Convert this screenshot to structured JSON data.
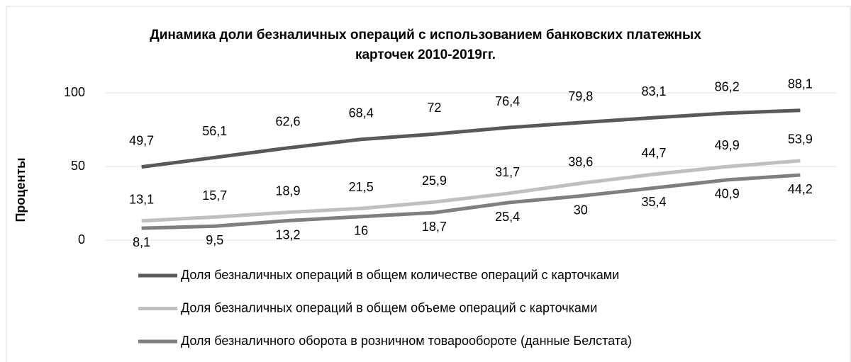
{
  "chart_data": {
    "type": "line",
    "title": "Динамика доли безналичных операций с использованием банковских платежных карточек 2010-2019гг.",
    "y_label": "Проценты",
    "categories": [
      null,
      null,
      null,
      null,
      null,
      null,
      null,
      null,
      null,
      null
    ],
    "ylim": [
      0,
      100
    ],
    "yticks": [
      0,
      50,
      100
    ],
    "grid": true,
    "series": [
      {
        "name": "Доля безналичных операций в общем количестве операций с карточками",
        "color": "#595959",
        "values": [
          49.7,
          56.1,
          62.6,
          68.4,
          72,
          76.4,
          79.8,
          83.1,
          86.2,
          88.1
        ],
        "value_labels": [
          "49,7",
          "56,1",
          "62,6",
          "68,4",
          "72",
          "76,4",
          "79,8",
          "83,1",
          "86,2",
          "88,1"
        ]
      },
      {
        "name": "Доля безналичных операций в общем объеме операций с карточками",
        "color": "#bfbfbf",
        "values": [
          13.1,
          15.7,
          18.9,
          21.5,
          25.9,
          31.7,
          38.6,
          44.7,
          49.9,
          53.9
        ],
        "value_labels": [
          "13,1",
          "15,7",
          "18,9",
          "21,5",
          "25,9",
          "31,7",
          "38,6",
          "44,7",
          "49,9",
          "53,9"
        ]
      },
      {
        "name": "Доля безналичного оборота в розничном товарообороте (данные Белстата)",
        "color": "#7f7f7f",
        "values": [
          8.1,
          9.5,
          13.2,
          16,
          18.7,
          25.4,
          30,
          35.4,
          40.9,
          44.2
        ],
        "value_labels": [
          "8,1",
          "9,5",
          "13,2",
          "16",
          "18,7",
          "25,4",
          "30",
          "35,4",
          "40,9",
          "44,2"
        ]
      }
    ]
  }
}
